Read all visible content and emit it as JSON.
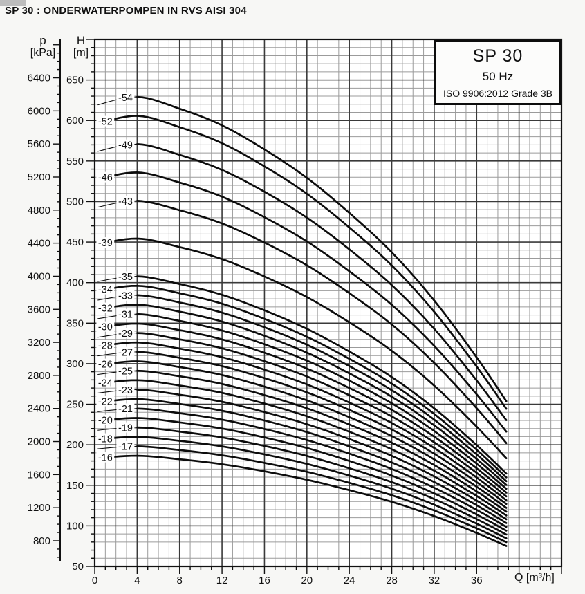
{
  "title": "SP 30 : ONDERWATERPOMPEN IN RVS AISI 304",
  "legend": {
    "model": "SP 30",
    "frequency": "50 Hz",
    "standard": "ISO 9906:2012 Grade 3B"
  },
  "axes": {
    "p_label": "p",
    "p_unit": "[kPa]",
    "h_label": "H",
    "h_unit": "[m]",
    "q_label": "Q [m³/h]",
    "q_max": 44,
    "q_major_step": 4,
    "q_minor_step": 1,
    "q_tick_labels": [
      0,
      4,
      8,
      12,
      16,
      20,
      24,
      28,
      32,
      36
    ],
    "h_min": 50,
    "h_max": 700,
    "h_major_step": 50,
    "h_minor_step": 10,
    "h_tick_labels": [
      50,
      100,
      150,
      200,
      250,
      300,
      350,
      400,
      450,
      500,
      550,
      600,
      650
    ],
    "p_major_step": 400,
    "p_minor_step": 100,
    "p_tick_labels": [
      800,
      1200,
      1600,
      2000,
      2400,
      2800,
      3200,
      3600,
      4000,
      4400,
      4800,
      5200,
      5600,
      6000,
      6400
    ],
    "kpa_per_m": 9.80665
  },
  "colors": {
    "ink": "#111111",
    "curve": "#0c0c0c",
    "grid_minor": "#9b9b9b",
    "grid_major": "#3a3a3a",
    "plot_bg": "#ffffff",
    "paper": "#f7f7f5"
  },
  "chart_data": {
    "type": "line",
    "title": "SP 30 : ONDERWATERPOMPEN IN RVS AISI 304",
    "xlabel": "Q [m³/h]",
    "ylabel": "H [m]",
    "ylabel_secondary": "p [kPa]",
    "x_range": [
      0,
      44
    ],
    "y_range": [
      50,
      700
    ],
    "grid": "on",
    "q_points": [
      0,
      4,
      8,
      12,
      16,
      20,
      24,
      28,
      32,
      36,
      38.8
    ],
    "head_per_stage_m": [
      11.45,
      11.65,
      11.38,
      11.0,
      10.45,
      9.8,
      9.0,
      8.1,
      7.0,
      5.7,
      4.7
    ],
    "stages": [
      54,
      52,
      49,
      46,
      43,
      39,
      35,
      34,
      33,
      32,
      31,
      30,
      29,
      28,
      27,
      26,
      25,
      24,
      23,
      22,
      21,
      20,
      19,
      18,
      17,
      16
    ],
    "curve_labels": [
      "-54",
      "-52",
      "-49",
      "-46",
      "-43",
      "-39",
      "-35",
      "-34",
      "-33",
      "-32",
      "-31",
      "-30",
      "-29",
      "-28",
      "-27",
      "-26",
      "-25",
      "-24",
      "-23",
      "-22",
      "-21",
      "-20",
      "-19",
      "-18",
      "-17",
      "-16"
    ],
    "curve_q_start": 0.2,
    "curve_q_end": 38.8,
    "label_q_inner": 2.9,
    "label_q_outer": 1.0
  }
}
